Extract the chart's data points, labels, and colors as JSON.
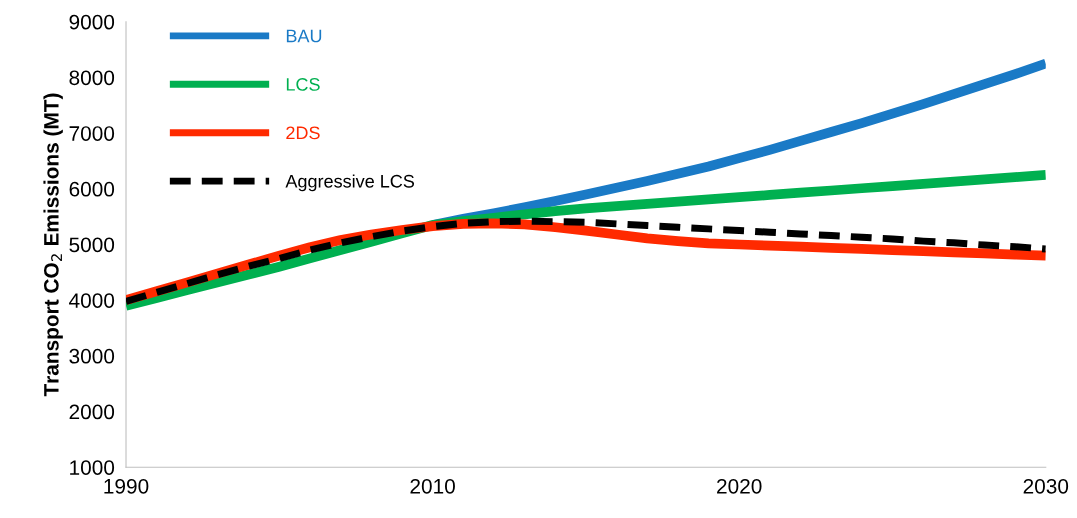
{
  "chart_data": {
    "type": "line",
    "ylabel": "Transport CO$_{2}$ Emissions (MT)",
    "categories": [
      "1990",
      null,
      null,
      null,
      null,
      null,
      null,
      null,
      null,
      null,
      "2010",
      null,
      null,
      null,
      null,
      null,
      null,
      null,
      null,
      null,
      "2020",
      null,
      null,
      null,
      null,
      null,
      null,
      null,
      null,
      null,
      "2030"
    ],
    "series": [
      {
        "name": "BAU",
        "color": "#1a7ac6",
        "values": [
          null,
          null,
          null,
          null,
          null,
          null,
          null,
          null,
          null,
          null,
          5350,
          5460,
          5560,
          5670,
          5780,
          5900,
          6020,
          6140,
          6270,
          6400,
          6550,
          6700,
          6860,
          7020,
          7180,
          7350,
          7520,
          7700,
          7880,
          8060,
          8250
        ]
      },
      {
        "name": "LCS",
        "color": "#00b050",
        "values": [
          3900,
          4040,
          4180,
          4320,
          4460,
          4600,
          4750,
          4900,
          5050,
          5200,
          5350,
          5420,
          5480,
          5540,
          5600,
          5650,
          5690,
          5730,
          5770,
          5810,
          5850,
          5890,
          5930,
          5970,
          6010,
          6050,
          6090,
          6130,
          6170,
          6210,
          6250
        ]
      },
      {
        "name": "2DS",
        "color": "#ff2a00",
        "values": [
          4000,
          4160,
          4320,
          4480,
          4640,
          4800,
          4950,
          5080,
          5180,
          5260,
          5330,
          5370,
          5380,
          5360,
          5310,
          5250,
          5180,
          5110,
          5060,
          5020,
          5000,
          4980,
          4960,
          4940,
          4920,
          4900,
          4880,
          4860,
          4840,
          4820,
          4800
        ]
      },
      {
        "name": "Aggressive LCS",
        "color": "#000000",
        "line_style": "dashed",
        "values": [
          3980,
          4140,
          4300,
          4460,
          4610,
          4750,
          4900,
          5030,
          5140,
          5240,
          5320,
          5380,
          5410,
          5420,
          5410,
          5400,
          5370,
          5340,
          5310,
          5280,
          5250,
          5220,
          5190,
          5160,
          5130,
          5100,
          5060,
          5030,
          4990,
          4960,
          4920
        ]
      }
    ],
    "ylim": [
      1000,
      9000
    ],
    "yticks": [
      1000,
      2000,
      3000,
      4000,
      5000,
      6000,
      7000,
      8000,
      9000
    ],
    "grid": false,
    "legend": "top left",
    "marker": "none",
    "line_style": "solid"
  }
}
